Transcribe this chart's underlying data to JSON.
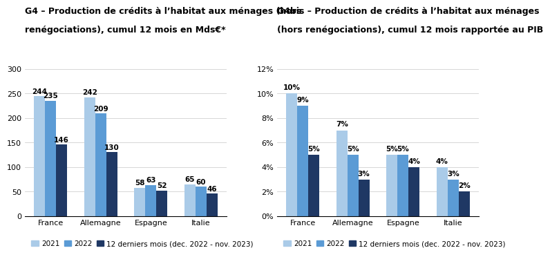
{
  "g4_title_line1": "G4 – Production de crédits à l’habitat aux ménages (hors",
  "g4_title_line2": "renégociations), cumul 12 mois en Mds€*",
  "g4bis_title_line1": "G4bis – Production de crédits à l’habitat aux ménages",
  "g4bis_title_line2": "(hors renégociations), cumul 12 mois rapportée au PIB",
  "categories": [
    "France",
    "Allemagne",
    "Espagne",
    "Italie"
  ],
  "g4_values": {
    "2021": [
      244,
      242,
      58,
      65
    ],
    "2022": [
      235,
      209,
      63,
      60
    ],
    "12m": [
      146,
      130,
      52,
      46
    ]
  },
  "g4bis_values": {
    "2021": [
      10,
      7,
      5,
      4
    ],
    "2022": [
      9,
      5,
      5,
      3
    ],
    "12m": [
      5,
      3,
      4,
      2
    ]
  },
  "g4_ylim": [
    0,
    300
  ],
  "g4_yticks": [
    0,
    50,
    100,
    150,
    200,
    250,
    300
  ],
  "g4bis_ylim": [
    0,
    12
  ],
  "g4bis_yticks": [
    0,
    2,
    4,
    6,
    8,
    10,
    12
  ],
  "color_2021": "#aacbe8",
  "color_2022": "#5b9bd5",
  "color_12m": "#1f3864",
  "legend_labels": [
    "2021",
    "2022",
    "12 derniers mois (dec. 2022 - nov. 2023)"
  ],
  "bar_width": 0.22,
  "background_color": "#ffffff",
  "title_fontsize": 9.0,
  "label_fontsize": 7.5,
  "tick_fontsize": 8,
  "legend_fontsize": 7.5
}
